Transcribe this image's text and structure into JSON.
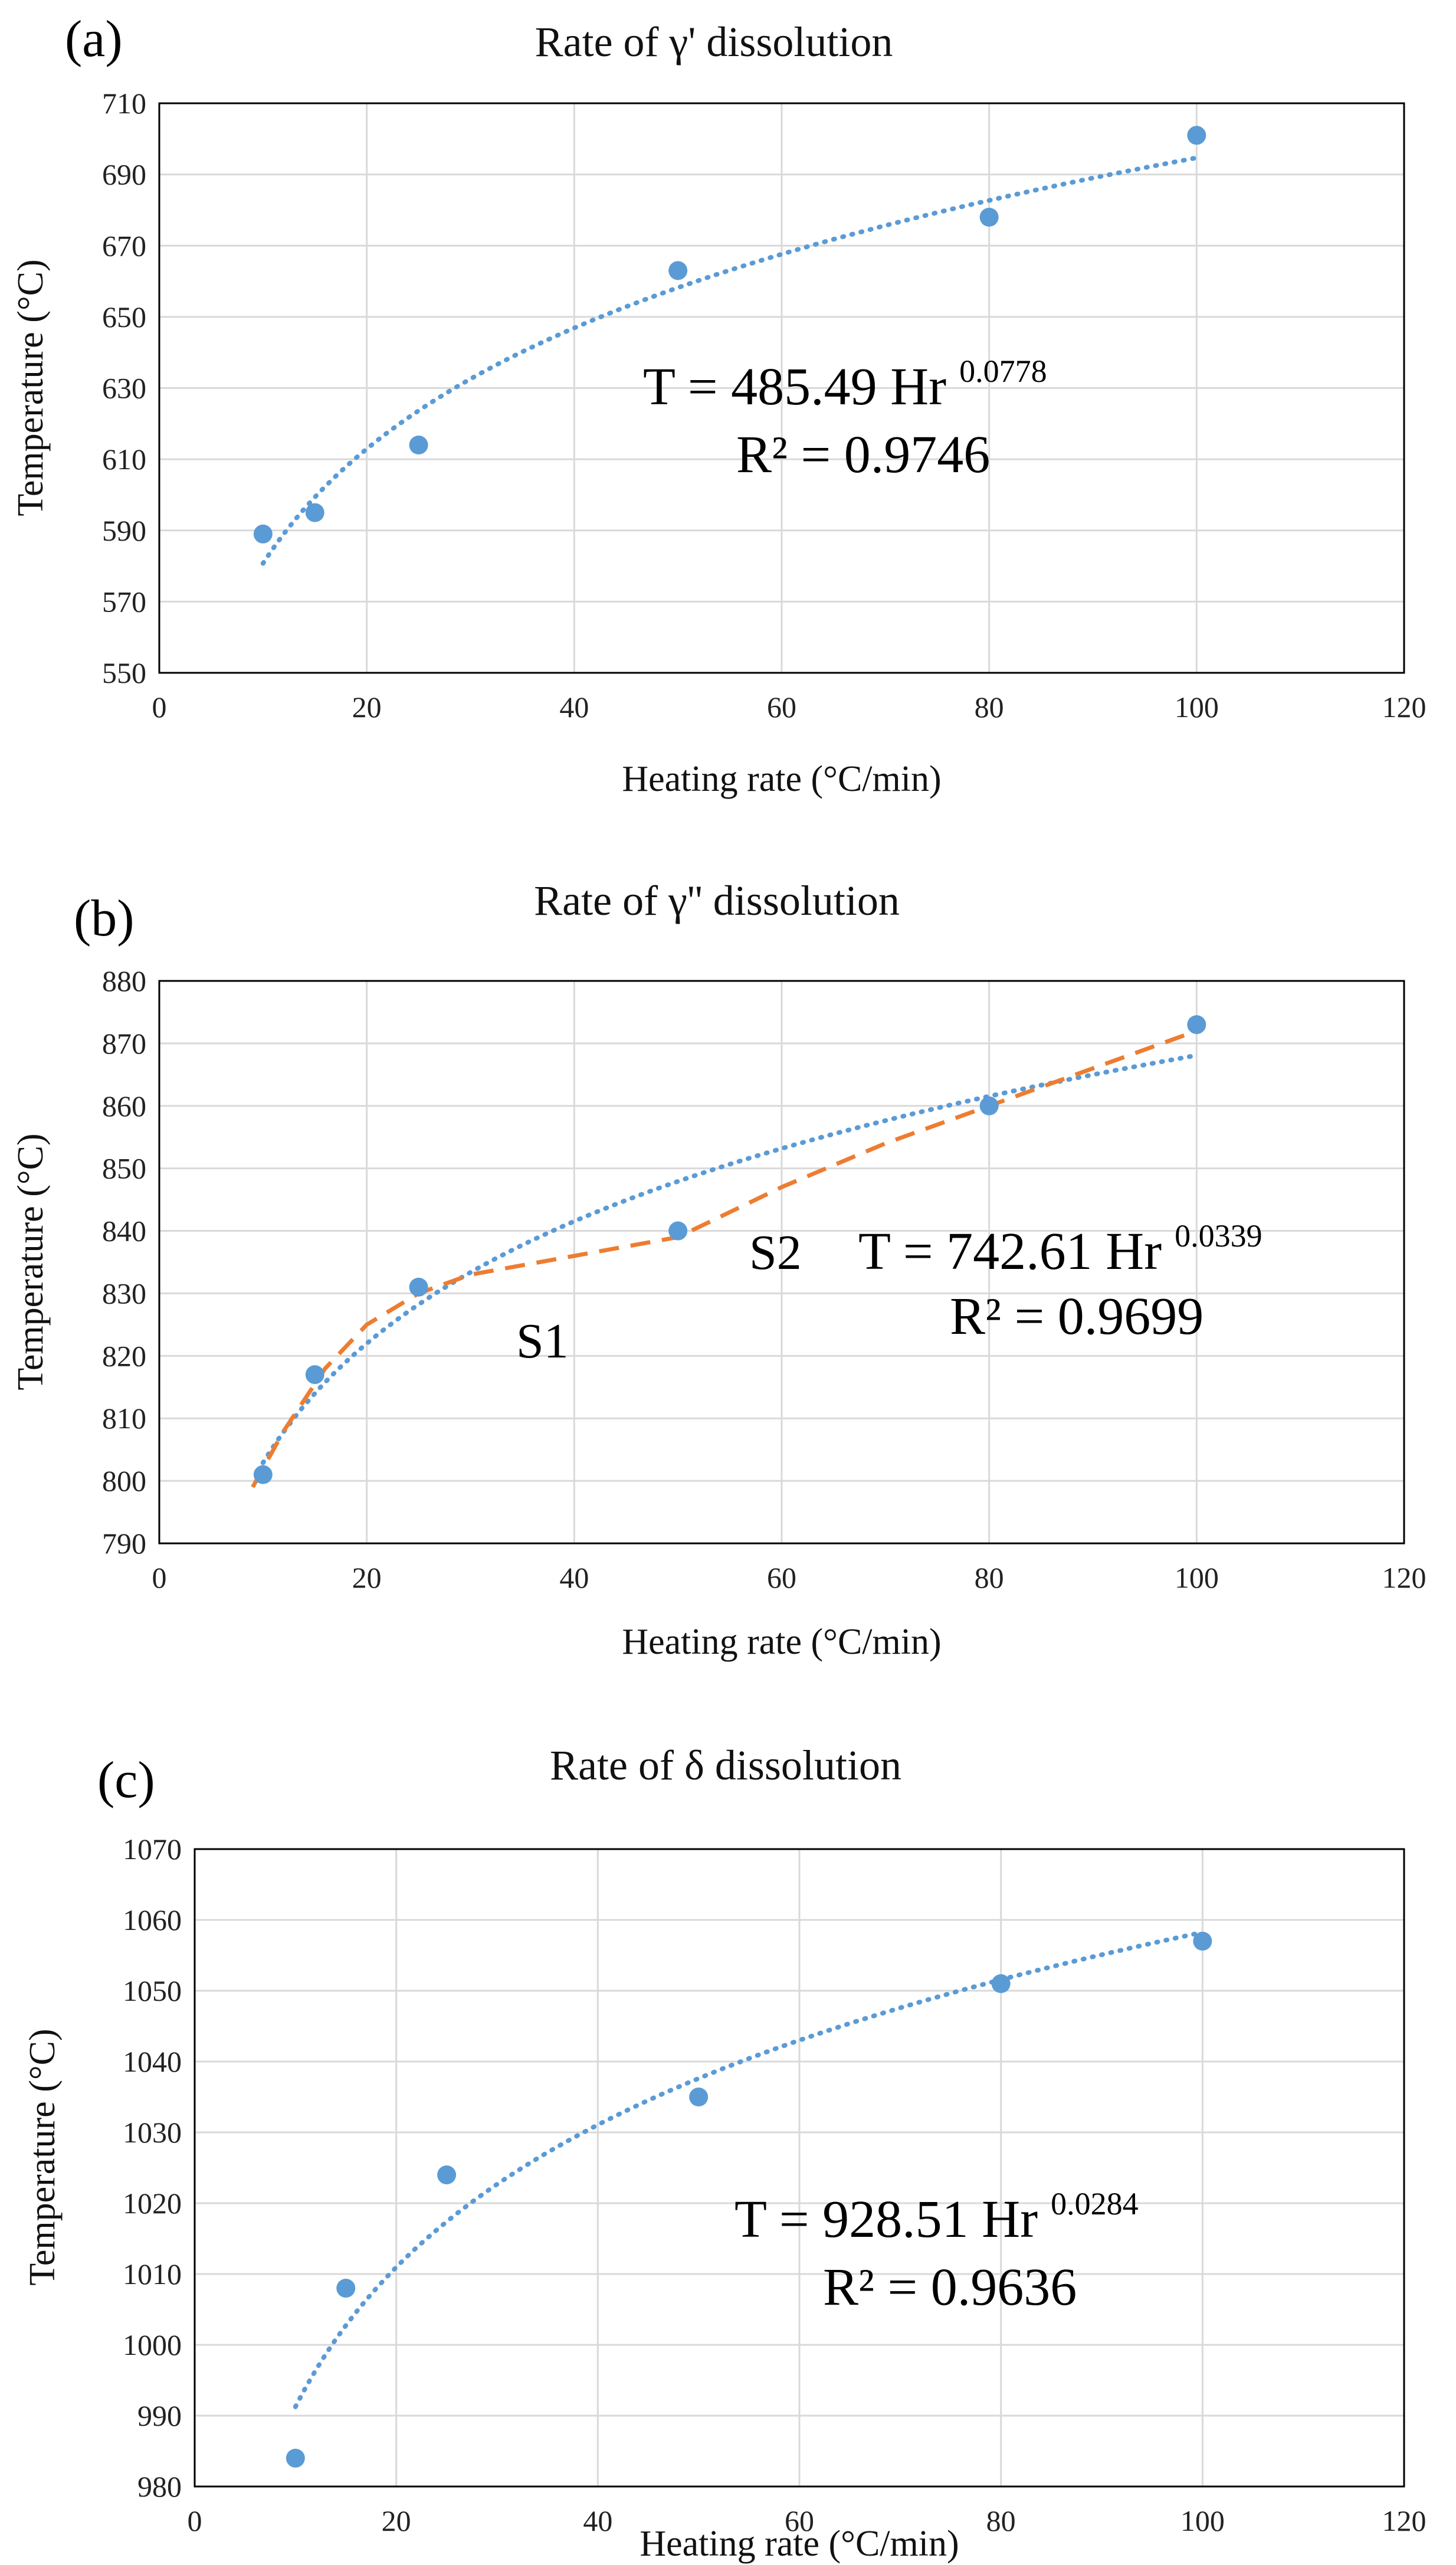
{
  "chart_data": [
    {
      "type": "scatter",
      "panel_label": "(a)",
      "title": "Rate of γ' dissolution",
      "xlabel": "Heating rate (°C/min)",
      "ylabel": "Temperature (°C)",
      "xlim": [
        0,
        120
      ],
      "ylim": [
        550,
        710
      ],
      "xticks": [
        0,
        20,
        40,
        60,
        80,
        100,
        120
      ],
      "yticks": [
        550,
        570,
        590,
        610,
        630,
        650,
        670,
        690,
        710
      ],
      "grid": true,
      "series": [
        {
          "name": "data",
          "x": [
            10,
            15,
            25,
            50,
            80,
            100
          ],
          "values": [
            589,
            595,
            614,
            663,
            678,
            701
          ],
          "color": "#5b9bd5"
        }
      ],
      "trendline": {
        "kind": "power",
        "a": 485.49,
        "b": 0.0778,
        "x_start": 10,
        "x_end": 100,
        "color": "#5b9bd5"
      },
      "equation": {
        "prefix": "T = 485.49 Hr",
        "exponent": "0.0778",
        "r2": "R² = 0.9746"
      }
    },
    {
      "type": "scatter",
      "panel_label": "(b)",
      "title": "Rate of γ'' dissolution",
      "xlabel": "Heating rate (°C/min)",
      "ylabel": "Temperature (°C)",
      "xlim": [
        0,
        120
      ],
      "ylim": [
        790,
        880
      ],
      "xticks": [
        0,
        20,
        40,
        60,
        80,
        100,
        120
      ],
      "yticks": [
        790,
        800,
        810,
        820,
        830,
        840,
        850,
        860,
        870,
        880
      ],
      "grid": true,
      "series": [
        {
          "name": "data",
          "x": [
            10,
            15,
            25,
            50,
            80,
            100
          ],
          "values": [
            801,
            817,
            831,
            840,
            860,
            873
          ],
          "color": "#5b9bd5"
        }
      ],
      "trendline": {
        "kind": "power",
        "a": 742.61,
        "b": 0.0339,
        "x_start": 10,
        "x_end": 100,
        "color": "#5b9bd5"
      },
      "fit_curve": {
        "name": "two-stage fit",
        "color": "#ed7d31",
        "x": [
          9,
          12,
          16,
          20,
          25,
          30,
          40,
          50,
          60,
          70,
          80,
          90,
          100
        ],
        "values": [
          799,
          808,
          818,
          825,
          830,
          833,
          836,
          839,
          847,
          854,
          860,
          866,
          872
        ]
      },
      "equation": {
        "prefix": "T = 742.61 Hr",
        "exponent": "0.0339",
        "r2": "R² = 0.9699"
      },
      "segment_labels": {
        "s1": "S1",
        "s2": "S2"
      }
    },
    {
      "type": "scatter",
      "panel_label": "(c)",
      "title": "Rate of δ dissolution",
      "xlabel": "Heating rate (°C/min)",
      "ylabel": "Temperature (°C)",
      "xlim": [
        0,
        120
      ],
      "ylim": [
        980,
        1070
      ],
      "xticks": [
        0,
        20,
        40,
        60,
        80,
        100,
        120
      ],
      "yticks": [
        980,
        990,
        1000,
        1010,
        1020,
        1030,
        1040,
        1050,
        1060,
        1070
      ],
      "grid": true,
      "series": [
        {
          "name": "data",
          "x": [
            10,
            15,
            25,
            50,
            80,
            100
          ],
          "values": [
            984,
            1008,
            1024,
            1035,
            1051,
            1057
          ],
          "color": "#5b9bd5"
        }
      ],
      "trendline": {
        "kind": "power",
        "a": 928.51,
        "b": 0.0284,
        "x_start": 10,
        "x_end": 100,
        "color": "#5b9bd5"
      },
      "equation": {
        "prefix": "T = 928.51 Hr",
        "exponent": "0.0284",
        "r2": "R² = 0.9636"
      }
    }
  ]
}
